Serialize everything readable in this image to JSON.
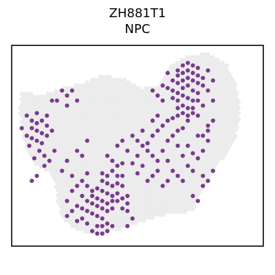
{
  "chart_data": {
    "type": "scatter",
    "title": "ZH881T1",
    "subtitle": "NPC",
    "xlabel": "",
    "ylabel": "",
    "grid": false,
    "legend": "none",
    "colors": {
      "background_spot": "#ececec",
      "positive_spot": "#7a3b8f",
      "frame": "#000000"
    },
    "xlim": [
      0,
      100
    ],
    "ylim": [
      0,
      80
    ],
    "tissue_outline": [
      [
        4,
        62
      ],
      [
        12,
        60
      ],
      [
        20,
        63
      ],
      [
        28,
        65
      ],
      [
        36,
        68
      ],
      [
        44,
        67
      ],
      [
        52,
        63
      ],
      [
        58,
        64
      ],
      [
        62,
        71
      ],
      [
        70,
        76
      ],
      [
        78,
        77
      ],
      [
        86,
        72
      ],
      [
        90,
        62
      ],
      [
        91,
        52
      ],
      [
        89,
        43
      ],
      [
        85,
        36
      ],
      [
        80,
        30
      ],
      [
        76,
        22
      ],
      [
        72,
        14
      ],
      [
        66,
        13
      ],
      [
        58,
        12
      ],
      [
        50,
        9
      ],
      [
        42,
        6
      ],
      [
        34,
        5
      ],
      [
        26,
        6
      ],
      [
        20,
        11
      ],
      [
        18,
        18
      ],
      [
        17,
        26
      ],
      [
        14,
        30
      ],
      [
        10,
        32
      ],
      [
        6,
        38
      ],
      [
        4,
        46
      ],
      [
        3,
        55
      ]
    ],
    "series": [
      {
        "values": [
          [
            66,
            70
          ],
          [
            68,
            72
          ],
          [
            70,
            73
          ],
          [
            72,
            72
          ],
          [
            74,
            71
          ],
          [
            66,
            68
          ],
          [
            68,
            69
          ],
          [
            70,
            70
          ],
          [
            72,
            69
          ],
          [
            74,
            68
          ],
          [
            76,
            67
          ],
          [
            64,
            66
          ],
          [
            66,
            65
          ],
          [
            68,
            66
          ],
          [
            70,
            67
          ],
          [
            72,
            66
          ],
          [
            74,
            65
          ],
          [
            76,
            64
          ],
          [
            62,
            63
          ],
          [
            64,
            62
          ],
          [
            66,
            61
          ],
          [
            68,
            63
          ],
          [
            70,
            64
          ],
          [
            72,
            62
          ],
          [
            74,
            61
          ],
          [
            64,
            59
          ],
          [
            66,
            58
          ],
          [
            68,
            60
          ],
          [
            70,
            59
          ],
          [
            72,
            58
          ],
          [
            74,
            58
          ],
          [
            66,
            55
          ],
          [
            68,
            56
          ],
          [
            70,
            55
          ],
          [
            72,
            55
          ],
          [
            68,
            53
          ],
          [
            70,
            52
          ],
          [
            72,
            53
          ],
          [
            70,
            50
          ],
          [
            74,
            52
          ],
          [
            78,
            62
          ],
          [
            80,
            66
          ],
          [
            76,
            56
          ],
          [
            60,
            64
          ],
          [
            58,
            60
          ],
          [
            56,
            62
          ],
          [
            78,
            70
          ],
          [
            62,
            69
          ],
          [
            60,
            58
          ],
          [
            80,
            58
          ],
          [
            6,
            52
          ],
          [
            8,
            50
          ],
          [
            10,
            49
          ],
          [
            12,
            50
          ],
          [
            14,
            48
          ],
          [
            8,
            47
          ],
          [
            10,
            46
          ],
          [
            12,
            45
          ],
          [
            14,
            44
          ],
          [
            6,
            44
          ],
          [
            8,
            43
          ],
          [
            10,
            42
          ],
          [
            12,
            41
          ],
          [
            4,
            47
          ],
          [
            16,
            46
          ],
          [
            14,
            52
          ],
          [
            10,
            53
          ],
          [
            7,
            40
          ],
          [
            11,
            38
          ],
          [
            13,
            36
          ],
          [
            9,
            35
          ],
          [
            15,
            34
          ],
          [
            13,
            32
          ],
          [
            10,
            28
          ],
          [
            8,
            26
          ],
          [
            17,
            38
          ],
          [
            20,
            62
          ],
          [
            22,
            60
          ],
          [
            24,
            62
          ],
          [
            38,
            36
          ],
          [
            40,
            34
          ],
          [
            42,
            32
          ],
          [
            44,
            33
          ],
          [
            40,
            30
          ],
          [
            38,
            28
          ],
          [
            36,
            29
          ],
          [
            42,
            28
          ],
          [
            44,
            28
          ],
          [
            36,
            26
          ],
          [
            38,
            25
          ],
          [
            40,
            24
          ],
          [
            42,
            25
          ],
          [
            44,
            24
          ],
          [
            34,
            23
          ],
          [
            36,
            22
          ],
          [
            38,
            21
          ],
          [
            40,
            20
          ],
          [
            42,
            21
          ],
          [
            32,
            22
          ],
          [
            30,
            24
          ],
          [
            32,
            20
          ],
          [
            34,
            19
          ],
          [
            36,
            18
          ],
          [
            38,
            17
          ],
          [
            40,
            18
          ],
          [
            42,
            18
          ],
          [
            44,
            19
          ],
          [
            46,
            17
          ],
          [
            28,
            20
          ],
          [
            30,
            18
          ],
          [
            32,
            17
          ],
          [
            34,
            16
          ],
          [
            36,
            15
          ],
          [
            38,
            14
          ],
          [
            40,
            15
          ],
          [
            44,
            15
          ],
          [
            46,
            14
          ],
          [
            26,
            16
          ],
          [
            28,
            15
          ],
          [
            30,
            14
          ],
          [
            32,
            13
          ],
          [
            34,
            12
          ],
          [
            36,
            11
          ],
          [
            24,
            14
          ],
          [
            28,
            11
          ],
          [
            22,
            18
          ],
          [
            24,
            22
          ],
          [
            26,
            24
          ],
          [
            30,
            29
          ],
          [
            28,
            26
          ],
          [
            42,
            40
          ],
          [
            44,
            42
          ],
          [
            46,
            38
          ],
          [
            48,
            11
          ],
          [
            46,
            8
          ],
          [
            34,
            8
          ],
          [
            32,
            6
          ],
          [
            34,
            5
          ],
          [
            36,
            5
          ],
          [
            38,
            6
          ],
          [
            36,
            8
          ],
          [
            38,
            9
          ],
          [
            40,
            8
          ],
          [
            30,
            9
          ],
          [
            26,
            10
          ],
          [
            22,
            12
          ],
          [
            46,
            20
          ],
          [
            48,
            44
          ],
          [
            50,
            42
          ],
          [
            52,
            40
          ],
          [
            54,
            41
          ],
          [
            56,
            44
          ],
          [
            58,
            46
          ],
          [
            60,
            48
          ],
          [
            62,
            50
          ],
          [
            64,
            51
          ],
          [
            66,
            52
          ],
          [
            54,
            38
          ],
          [
            56,
            36
          ],
          [
            58,
            34
          ],
          [
            60,
            38
          ],
          [
            62,
            42
          ],
          [
            64,
            44
          ],
          [
            66,
            46
          ],
          [
            68,
            47
          ],
          [
            70,
            40
          ],
          [
            72,
            37
          ],
          [
            74,
            35
          ],
          [
            76,
            38
          ],
          [
            78,
            42
          ],
          [
            76,
            44
          ],
          [
            78,
            46
          ],
          [
            74,
            44
          ],
          [
            70,
            32
          ],
          [
            72,
            30
          ],
          [
            76,
            28
          ],
          [
            78,
            26
          ],
          [
            80,
            30
          ],
          [
            76,
            24
          ],
          [
            68,
            36
          ],
          [
            50,
            36
          ],
          [
            52,
            32
          ],
          [
            56,
            28
          ],
          [
            58,
            30
          ],
          [
            62,
            34
          ],
          [
            64,
            30
          ],
          [
            66,
            28
          ],
          [
            62,
            26
          ],
          [
            48,
            33
          ],
          [
            50,
            29
          ],
          [
            54,
            26
          ],
          [
            60,
            24
          ],
          [
            68,
            26
          ],
          [
            72,
            20
          ],
          [
            74,
            18
          ],
          [
            78,
            48
          ],
          [
            80,
            50
          ],
          [
            66,
            40
          ],
          [
            56,
            50
          ],
          [
            52,
            46
          ],
          [
            58,
            52
          ],
          [
            20,
            30
          ],
          [
            22,
            34
          ],
          [
            26,
            38
          ],
          [
            30,
            42
          ],
          [
            28,
            36
          ],
          [
            24,
            28
          ],
          [
            18,
            58
          ],
          [
            26,
            58
          ],
          [
            22,
            56
          ],
          [
            16,
            58
          ]
        ]
      }
    ]
  }
}
